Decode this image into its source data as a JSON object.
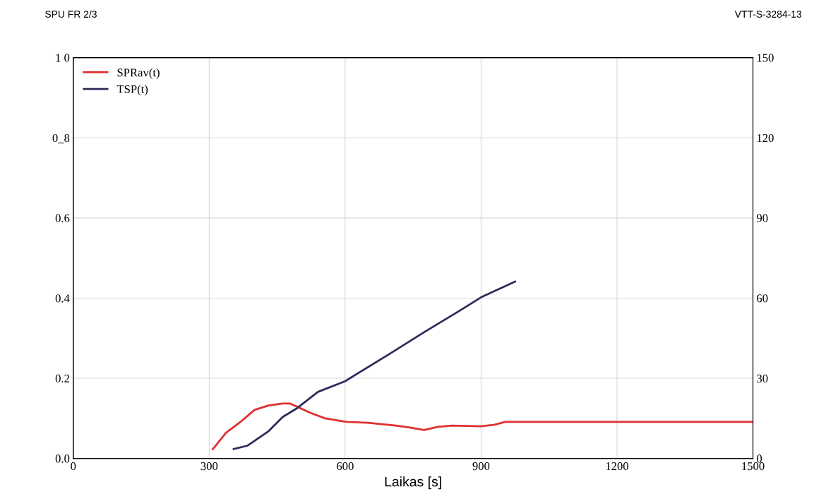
{
  "chart_data": {
    "type": "line",
    "xlabel": "Laikas [s]",
    "annotations": [
      "SPU FR 2/3",
      "VTT-S-3284-13"
    ],
    "xlim": [
      0,
      1500
    ],
    "xticks": [
      0,
      300,
      600,
      900,
      1200,
      1500
    ],
    "ylim": [
      0,
      1.0
    ],
    "yticks": [
      {
        "value": 0,
        "label": "0.0"
      },
      0.2,
      0.4,
      0.6,
      {
        "value": 0.8,
        "label": "0_8"
      },
      {
        "value": 1.0,
        "label": "1 0"
      }
    ],
    "y2lim": [
      0,
      150
    ],
    "y2ticks": [
      0,
      30,
      60,
      90,
      120,
      150
    ],
    "grid": true,
    "legend": "top left",
    "series": [
      {
        "name": "SPRav(t)",
        "color": "#e03030",
        "x": [
          308,
          337,
          369,
          400,
          431,
          462,
          478,
          494,
          525,
          556,
          603,
          650,
          712,
          743,
          774,
          805,
          836,
          899,
          930,
          953,
          977,
          1500
        ],
        "values": [
          0.023,
          0.064,
          0.091,
          0.121,
          0.132,
          0.137,
          0.137,
          0.129,
          0.113,
          0.1,
          0.091,
          0.089,
          0.082,
          0.077,
          0.071,
          0.079,
          0.082,
          0.08,
          0.084,
          0.091,
          0.091,
          0.091
        ]
      },
      {
        "name": "TSP(t)",
        "color": "#2c2c5c",
        "axis": "y2",
        "x": [
          354,
          385,
          431,
          462,
          494,
          540,
          600,
          696,
          774,
          852,
          900,
          975
        ],
        "values": [
          3.5,
          4.8,
          10.2,
          15.5,
          18.8,
          24.9,
          28.9,
          38.9,
          47.2,
          55.2,
          60.3,
          66.2
        ]
      }
    ]
  }
}
